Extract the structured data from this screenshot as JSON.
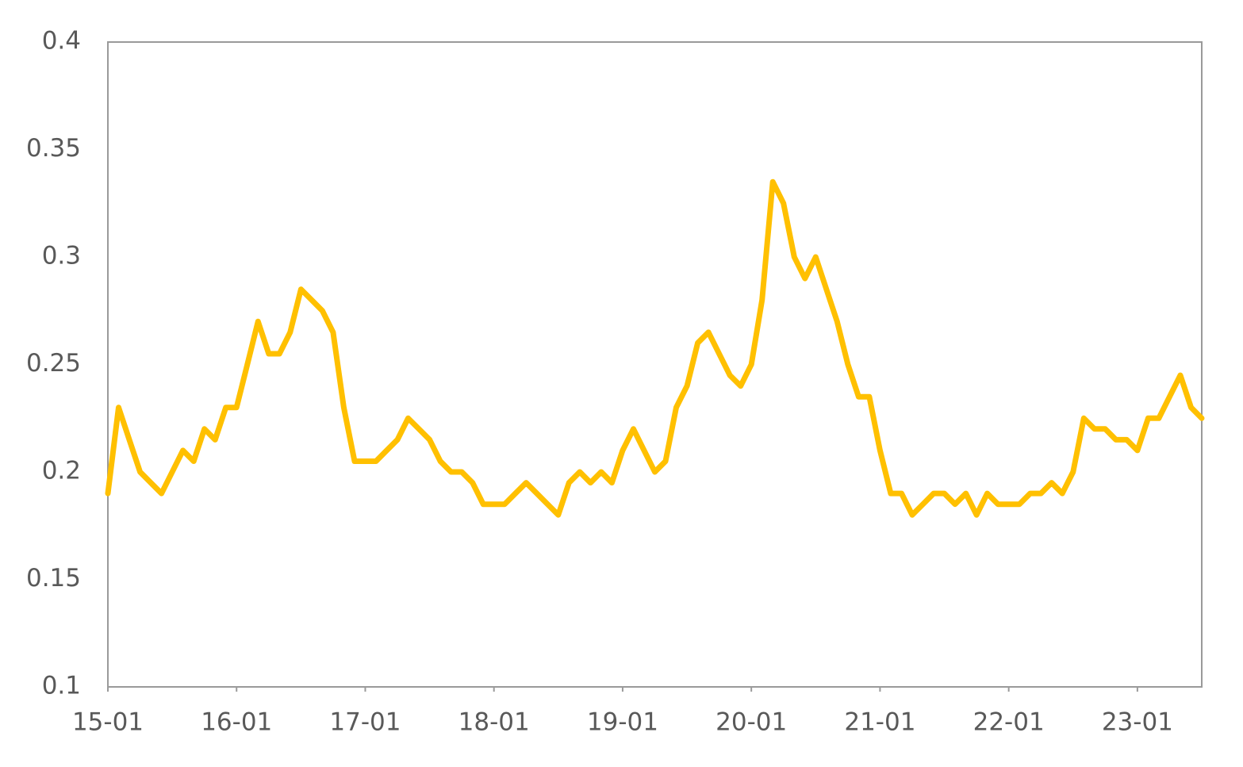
{
  "chart_data": {
    "type": "line",
    "x": [
      "15-01",
      "15-02",
      "15-03",
      "15-04",
      "15-05",
      "15-06",
      "15-07",
      "15-08",
      "15-09",
      "15-10",
      "15-11",
      "15-12",
      "16-01",
      "16-02",
      "16-03",
      "16-04",
      "16-05",
      "16-06",
      "16-07",
      "16-08",
      "16-09",
      "16-10",
      "16-11",
      "16-12",
      "17-01",
      "17-02",
      "17-03",
      "17-04",
      "17-05",
      "17-06",
      "17-07",
      "17-08",
      "17-09",
      "17-10",
      "17-11",
      "17-12",
      "18-01",
      "18-02",
      "18-03",
      "18-04",
      "18-05",
      "18-06",
      "18-07",
      "18-08",
      "18-09",
      "18-10",
      "18-11",
      "18-12",
      "19-01",
      "19-02",
      "19-03",
      "19-04",
      "19-05",
      "19-06",
      "19-07",
      "19-08",
      "19-09",
      "19-10",
      "19-11",
      "19-12",
      "20-01",
      "20-02",
      "20-03",
      "20-04",
      "20-05",
      "20-06",
      "20-07",
      "20-08",
      "20-09",
      "20-10",
      "20-11",
      "20-12",
      "21-01",
      "21-02",
      "21-03",
      "21-04",
      "21-05",
      "21-06",
      "21-07",
      "21-08",
      "21-09",
      "21-10",
      "21-11",
      "21-12",
      "22-01",
      "22-02",
      "22-03",
      "22-04",
      "22-05",
      "22-06",
      "22-07",
      "22-08",
      "22-09",
      "22-10",
      "22-11",
      "22-12",
      "23-01",
      "23-02",
      "23-03",
      "23-04",
      "23-05",
      "23-06",
      "23-07"
    ],
    "values": [
      0.19,
      0.23,
      0.215,
      0.2,
      0.195,
      0.19,
      0.2,
      0.21,
      0.205,
      0.22,
      0.215,
      0.23,
      0.23,
      0.25,
      0.27,
      0.255,
      0.255,
      0.265,
      0.285,
      0.28,
      0.275,
      0.265,
      0.23,
      0.205,
      0.205,
      0.205,
      0.21,
      0.215,
      0.225,
      0.22,
      0.215,
      0.205,
      0.2,
      0.2,
      0.195,
      0.185,
      0.185,
      0.185,
      0.19,
      0.195,
      0.19,
      0.185,
      0.18,
      0.195,
      0.2,
      0.195,
      0.2,
      0.195,
      0.21,
      0.22,
      0.21,
      0.2,
      0.205,
      0.23,
      0.24,
      0.26,
      0.265,
      0.255,
      0.245,
      0.24,
      0.25,
      0.28,
      0.335,
      0.325,
      0.3,
      0.29,
      0.3,
      0.285,
      0.27,
      0.25,
      0.235,
      0.235,
      0.21,
      0.19,
      0.19,
      0.18,
      0.185,
      0.19,
      0.19,
      0.185,
      0.19,
      0.18,
      0.19,
      0.185,
      0.185,
      0.185,
      0.19,
      0.19,
      0.195,
      0.19,
      0.2,
      0.225,
      0.22,
      0.22,
      0.215,
      0.215,
      0.21,
      0.225,
      0.225,
      0.235,
      0.245,
      0.23,
      0.225
    ],
    "color": "#FFC000",
    "xlim": [
      "15-01",
      "23-07"
    ],
    "xticks": [
      "15-01",
      "16-01",
      "17-01",
      "18-01",
      "19-01",
      "20-01",
      "21-01",
      "22-01",
      "23-01"
    ],
    "ylim": [
      0.1,
      0.4
    ],
    "yticks": [
      0.1,
      0.15,
      0.2,
      0.25,
      0.3,
      0.35,
      0.4
    ]
  }
}
